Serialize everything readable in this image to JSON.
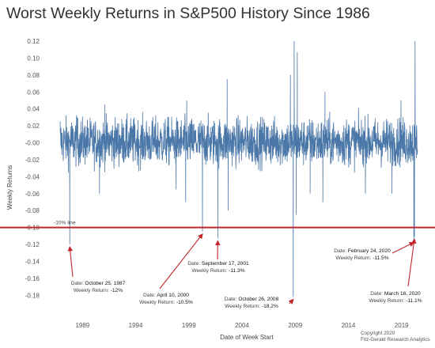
{
  "chart_data": {
    "type": "line",
    "title": "Worst Weekly Returns in S&P500 History Since 1986",
    "xlabel": "Date of Week Start",
    "ylabel": "Weekly Returns",
    "xlim": [
      1986.0,
      2021.7
    ],
    "ylim": [
      -0.19,
      0.12
    ],
    "x_ticks": [
      1989,
      1994,
      1999,
      2004,
      2009,
      2014,
      2019
    ],
    "y_ticks": [
      0.12,
      0.1,
      0.08,
      0.06,
      0.04,
      0.02,
      0.0,
      -0.02,
      -0.04,
      -0.06,
      -0.08,
      -0.1,
      -0.12,
      -0.14,
      -0.16,
      -0.18
    ],
    "y_tick_labels": [
      "0.12",
      "0.10",
      "0.08",
      "0.06",
      "0.04",
      "0.02",
      "-0.00",
      "-0.02",
      "-0.04",
      "-0.06",
      "-0.08",
      "-0.10",
      "-0.12",
      "-0.14",
      "-0.16",
      "-0.18"
    ],
    "grid": false,
    "series": [
      {
        "name": "",
        "color": "#4a77a8",
        "points": [
          [
            1986.9,
            0.025
          ],
          [
            1987.8,
            -0.12
          ],
          [
            1988.5,
            0.03
          ],
          [
            1990.6,
            -0.06
          ],
          [
            1991.1,
            0.045
          ],
          [
            1997.8,
            -0.055
          ],
          [
            1998.7,
            -0.07
          ],
          [
            1998.8,
            0.05
          ],
          [
            2000.28,
            -0.105
          ],
          [
            2001.72,
            -0.113
          ],
          [
            2002.6,
            0.075
          ],
          [
            2002.7,
            -0.08
          ],
          [
            2008.55,
            0.08
          ],
          [
            2008.82,
            -0.182
          ],
          [
            2008.9,
            0.12
          ],
          [
            2009.1,
            -0.085
          ],
          [
            2009.2,
            0.107
          ],
          [
            2010.4,
            -0.06
          ],
          [
            2011.6,
            -0.07
          ],
          [
            2011.8,
            0.06
          ],
          [
            2015.6,
            -0.06
          ],
          [
            2018.1,
            -0.06
          ],
          [
            2018.95,
            0.05
          ],
          [
            2020.15,
            -0.115
          ],
          [
            2020.21,
            -0.111
          ],
          [
            2020.27,
            0.12
          ]
        ]
      }
    ],
    "reference_line": {
      "y": -0.1,
      "label": "-10% line",
      "color": "#c0262b"
    },
    "annotations": [
      {
        "date_label": "Date:",
        "date": "October 25, 1987",
        "return_label": "Weekly Return:",
        "return": "-12%",
        "x": 1987.8,
        "y": -0.12
      },
      {
        "date_label": "Date:",
        "date": "April 10, 2000",
        "return_label": "Weekly Return:",
        "return": "-10.5%",
        "x": 2000.28,
        "y": -0.105
      },
      {
        "date_label": "Date:",
        "date": "September 17, 2001",
        "return_label": "Weekly Return:",
        "return": "-11.3%",
        "x": 2001.72,
        "y": -0.113
      },
      {
        "date_label": "Date:",
        "date": "October 26, 2008",
        "return_label": "Weekly Return:",
        "return": "-18.2%",
        "x": 2008.82,
        "y": -0.182
      },
      {
        "date_label": "Date:",
        "date": "February 24, 2020",
        "return_label": "Weekly Return:",
        "return": "-11.5%",
        "x": 2020.15,
        "y": -0.115
      },
      {
        "date_label": "Date:",
        "date": "March 16, 2020",
        "return_label": "Weekly Return:",
        "return": "-11.1%",
        "x": 2020.21,
        "y": -0.111
      }
    ],
    "arrow_color": "#c0262b"
  },
  "credits": {
    "copyright": "Copyright 2020",
    "author": "Fitz-Gerald Research Analytics"
  }
}
